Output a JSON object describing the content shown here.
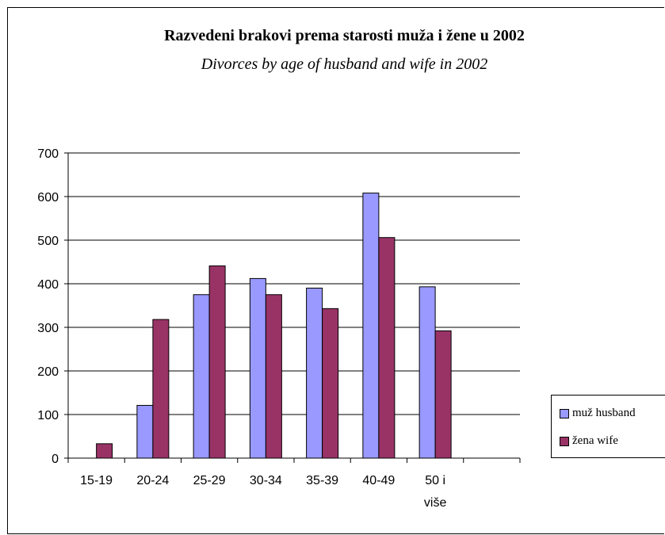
{
  "chart_data": {
    "type": "bar",
    "title": "Razvedeni brakovi prema starosti muža i žene u 2002",
    "subtitle": "Divorces by age of husband and wife in 2002",
    "categories": [
      "15-19",
      "20-24",
      "25-29",
      "30-34",
      "35-39",
      "40-49",
      "50 i\nviše"
    ],
    "series": [
      {
        "name": "muž husband",
        "color": "#9999ff",
        "values": [
          0,
          121,
          375,
          412,
          390,
          608,
          393
        ]
      },
      {
        "name": "žena wife",
        "color": "#993366",
        "values": [
          33,
          318,
          441,
          375,
          343,
          506,
          292
        ]
      }
    ],
    "ylim": [
      0,
      700
    ],
    "yticks": [
      0,
      100,
      200,
      300,
      400,
      500,
      600,
      700
    ],
    "grid": true,
    "legend_position": "right"
  }
}
